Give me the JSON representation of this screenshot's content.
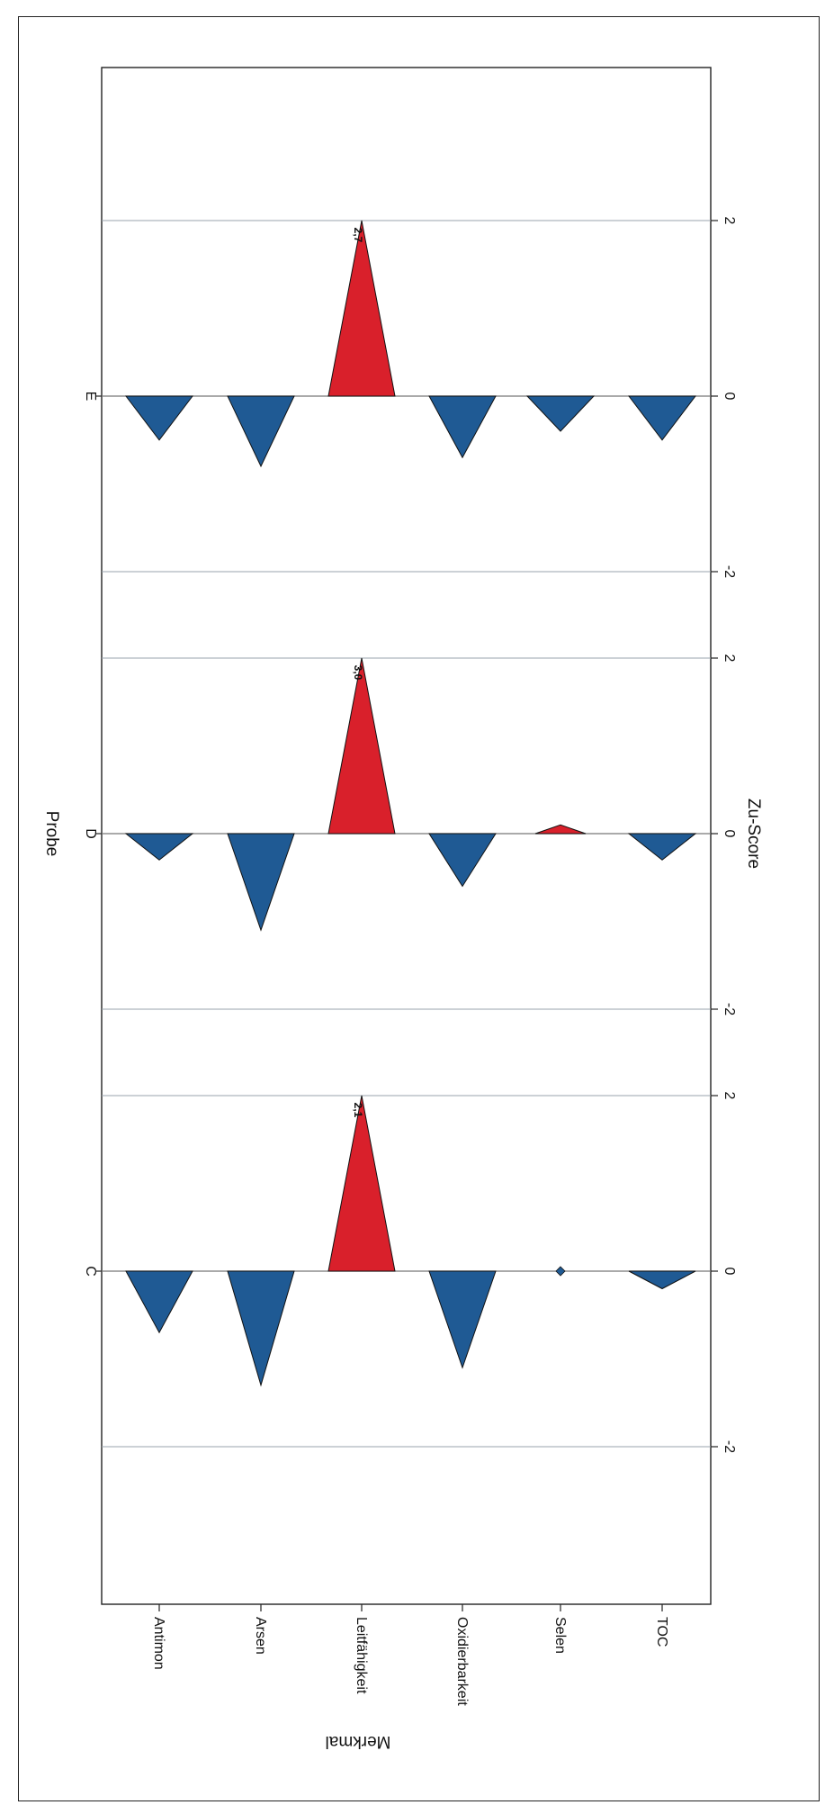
{
  "chart_data": {
    "type": "bar",
    "orientation": "rotated-90",
    "marker": "triangle",
    "title": "Probe",
    "xlabel": "Merkmal",
    "ylabel": "Zu-Score",
    "categories": [
      "Antimon",
      "Arsen",
      "Leitfähigkeit",
      "Oxidierbarkeit",
      "Selen",
      "TOC"
    ],
    "panels": [
      {
        "name": "C",
        "ylim": [
          -3.5,
          3.5
        ],
        "yticks": [
          -2,
          0,
          2
        ],
        "values": [
          -0.7,
          -1.3,
          2.1,
          -1.1,
          0.0,
          -0.2
        ],
        "capped_max": 2,
        "data_labels": [
          {
            "category": "Leitfähigkeit",
            "text": "2,1"
          }
        ]
      },
      {
        "name": "D",
        "ylim": [
          -2.5,
          2.5
        ],
        "yticks": [
          -2,
          0,
          2
        ],
        "values": [
          -0.3,
          -1.1,
          3.0,
          -0.6,
          0.1,
          -0.3
        ],
        "capped_max": 2,
        "data_labels": [
          {
            "category": "Leitfähigkeit",
            "text": "3,0"
          }
        ]
      },
      {
        "name": "E",
        "ylim": [
          -2.5,
          3.5
        ],
        "yticks": [
          -2,
          0,
          2
        ],
        "values": [
          -0.5,
          -0.8,
          2.7,
          -0.7,
          -0.4,
          -0.5
        ],
        "capped_max": 2,
        "data_labels": [
          {
            "category": "Leitfähigkeit",
            "text": "2,7"
          }
        ]
      }
    ],
    "grid": true,
    "colors": {
      "negative": "#1f5a94",
      "positive": "#d9202b",
      "grid": "#9aa3ad"
    }
  }
}
